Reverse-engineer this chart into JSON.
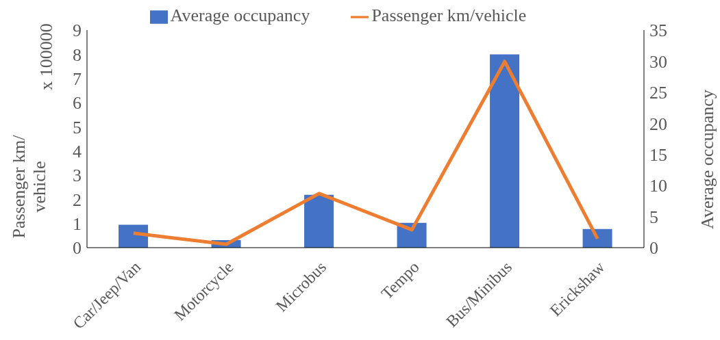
{
  "chart_data": {
    "type": "bar",
    "ylabel": "Passenger km/ vehicle",
    "y2label": "Average occupancy",
    "annotations": [
      "x 100000"
    ],
    "categories": [
      "Car/Jeep/Van",
      "Motorcycle",
      "Microbus",
      "Tempo",
      "Bus/Minibus",
      "Erickshaw"
    ],
    "series": [
      {
        "name": "Average occupancy",
        "axis": "y2",
        "color": "#4472c4",
        "values": [
          3.7,
          1.2,
          8.5,
          4.0,
          31.1,
          3.0
        ]
      },
      {
        "name": "Passenger km/vehicle",
        "type": "line",
        "color": "#ed7d31",
        "values": [
          0.6,
          0.14,
          2.24,
          0.74,
          7.7,
          0.37
        ]
      }
    ],
    "ylim": [
      0,
      9
    ],
    "yticks": [
      0,
      1,
      2,
      3,
      4,
      5,
      6,
      7,
      8,
      9
    ],
    "y2lim": [
      0,
      35
    ],
    "y2ticks": [
      0,
      5,
      10,
      15,
      20,
      25,
      30,
      35
    ],
    "legend": "top",
    "marker": "none"
  }
}
